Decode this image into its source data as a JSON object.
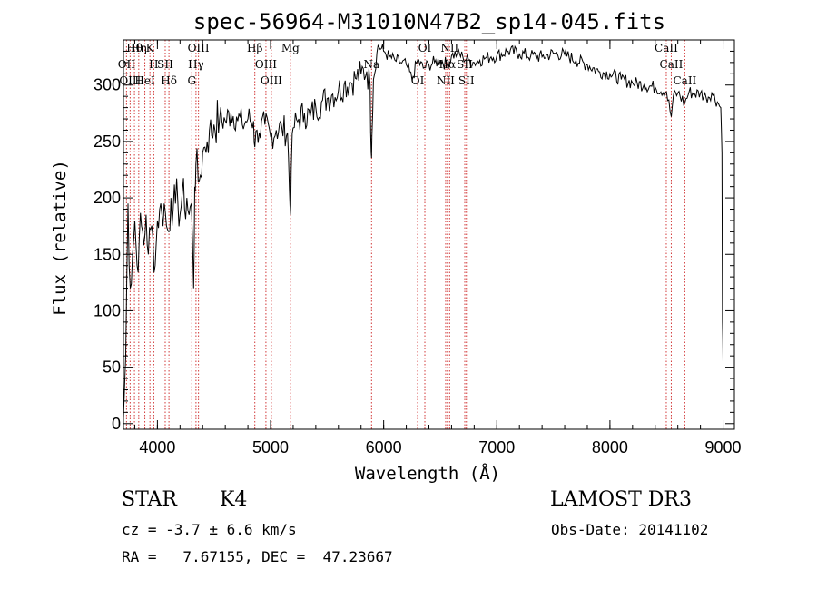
{
  "chart_data": {
    "type": "line",
    "title": "spec-56964-M31010N47B2_sp14-045.fits",
    "xlabel": "Wavelength (Å)",
    "ylabel": "Flux (relative)",
    "xlim": [
      3700,
      9100
    ],
    "ylim": [
      -5,
      340
    ],
    "xticks": [
      4000,
      5000,
      6000,
      7000,
      8000,
      9000
    ],
    "yticks": [
      0,
      50,
      100,
      150,
      200,
      250,
      300
    ],
    "xtick_labels": [
      "4000",
      "5000",
      "6000",
      "7000",
      "8000",
      "9000"
    ],
    "ytick_labels": [
      "0",
      "50",
      "100",
      "150",
      "200",
      "250",
      "300"
    ],
    "series": [
      {
        "name": "flux",
        "x": [
          3700,
          3720,
          3740,
          3760,
          3780,
          3800,
          3820,
          3840,
          3860,
          3880,
          3900,
          3920,
          3940,
          3960,
          3980,
          4000,
          4020,
          4040,
          4060,
          4080,
          4100,
          4120,
          4140,
          4160,
          4180,
          4200,
          4220,
          4240,
          4260,
          4280,
          4300,
          4320,
          4330,
          4340,
          4360,
          4380,
          4400,
          4420,
          4440,
          4460,
          4480,
          4500,
          4550,
          4600,
          4650,
          4700,
          4750,
          4800,
          4850,
          4861,
          4880,
          4900,
          4950,
          5000,
          5050,
          5100,
          5150,
          5175,
          5183,
          5200,
          5250,
          5300,
          5350,
          5400,
          5450,
          5500,
          5550,
          5600,
          5650,
          5700,
          5750,
          5800,
          5850,
          5880,
          5890,
          5896,
          5910,
          5950,
          6000,
          6050,
          6100,
          6150,
          6200,
          6250,
          6300,
          6350,
          6400,
          6450,
          6500,
          6563,
          6600,
          6650,
          6700,
          6750,
          6800,
          6850,
          6900,
          6950,
          7000,
          7100,
          7200,
          7300,
          7400,
          7500,
          7600,
          7700,
          7800,
          7900,
          8000,
          8100,
          8200,
          8300,
          8400,
          8500,
          8542,
          8560,
          8600,
          8662,
          8700,
          8750,
          8800,
          8850,
          8900,
          8950,
          8980,
          8990,
          8995,
          9000
        ],
        "values": [
          5,
          60,
          195,
          120,
          150,
          180,
          140,
          165,
          175,
          158,
          185,
          150,
          172,
          165,
          140,
          180,
          190,
          185,
          195,
          175,
          170,
          200,
          190,
          195,
          198,
          185,
          205,
          190,
          200,
          185,
          195,
          120,
          210,
          230,
          215,
          220,
          240,
          245,
          250,
          260,
          255,
          265,
          270,
          268,
          275,
          272,
          265,
          270,
          268,
          245,
          260,
          258,
          265,
          255,
          260,
          262,
          258,
          185,
          225,
          262,
          270,
          275,
          272,
          280,
          285,
          288,
          292,
          295,
          300,
          302,
          306,
          310,
          312,
          300,
          240,
          255,
          305,
          335,
          330,
          325,
          322,
          320,
          318,
          305,
          322,
          315,
          318,
          320,
          322,
          318,
          326,
          328,
          325,
          322,
          320,
          322,
          324,
          325,
          326,
          330,
          328,
          326,
          325,
          328,
          327,
          322,
          318,
          312,
          310,
          305,
          302,
          300,
          298,
          294,
          272,
          290,
          293,
          284,
          294,
          292,
          293,
          289,
          293,
          285,
          280,
          240,
          90,
          55
        ]
      }
    ],
    "lines": [
      {
        "label": "Hθ",
        "x": 3797
      },
      {
        "label": "OII",
        "x": 3727
      },
      {
        "label": "OIII",
        "x": 3759
      },
      {
        "label": "K",
        "x": 3934
      },
      {
        "label": "H",
        "x": 3968
      },
      {
        "label": "HeI",
        "x": 3889
      },
      {
        "label": "Hη",
        "x": 3835
      },
      {
        "label": "SII",
        "x": 4069
      },
      {
        "label": "Hδ",
        "x": 4102
      },
      {
        "label": "OIII",
        "x": 4363
      },
      {
        "label": "Hγ",
        "x": 4341
      },
      {
        "label": "G",
        "x": 4304
      },
      {
        "label": "Hβ",
        "x": 4861
      },
      {
        "label": "OIII",
        "x": 4959
      },
      {
        "label": "OIII",
        "x": 5007
      },
      {
        "label": "Mg",
        "x": 5175
      },
      {
        "label": "Na",
        "x": 5893
      },
      {
        "label": "OI",
        "x": 6300
      },
      {
        "label": "OI",
        "x": 6364
      },
      {
        "label": "Hα",
        "x": 6563
      },
      {
        "label": "NII",
        "x": 6548
      },
      {
        "label": "NII",
        "x": 6583
      },
      {
        "label": "SII",
        "x": 6717
      },
      {
        "label": "SII",
        "x": 6731
      },
      {
        "label": "CaII",
        "x": 8498
      },
      {
        "label": "CaII",
        "x": 8542
      },
      {
        "label": "CaII",
        "x": 8662
      }
    ]
  },
  "info": {
    "object_class": "STAR",
    "subclass": "K4",
    "survey": "LAMOST DR3",
    "redshift": "cz = -3.7 ± 6.6 km/s",
    "obs_date": "Obs-Date: 20141102",
    "coords": "RA =   7.67155, DEC =  47.23667"
  }
}
